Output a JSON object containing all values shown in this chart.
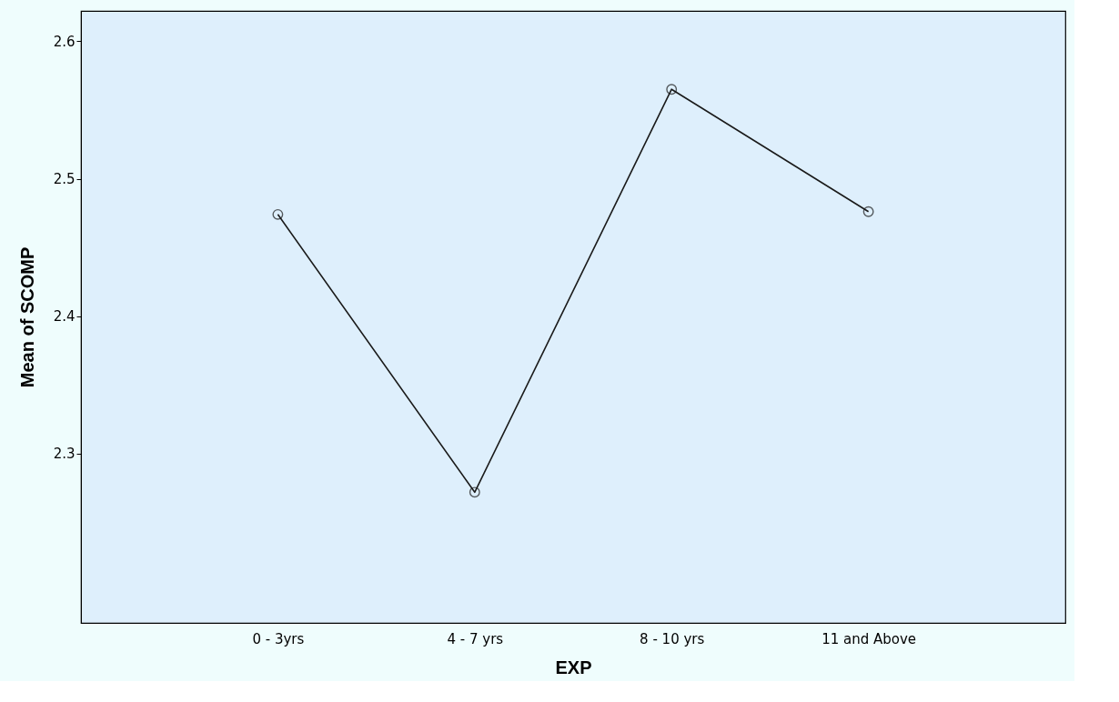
{
  "chart_data": {
    "type": "line",
    "xlabel": "EXP",
    "ylabel": "Mean of SCOMP",
    "categories": [
      "0 - 3yrs",
      "4 - 7 yrs",
      "8 - 10 yrs",
      "11 and Above"
    ],
    "series": [
      {
        "color": "#1a1a1a",
        "values": [
          2.474,
          2.272,
          2.565,
          2.476
        ]
      }
    ],
    "ylim": [
      2.177,
      2.622
    ],
    "yticks": [
      2.3,
      2.4,
      2.5,
      2.6
    ],
    "marker": "circle",
    "line_style": "solid"
  }
}
